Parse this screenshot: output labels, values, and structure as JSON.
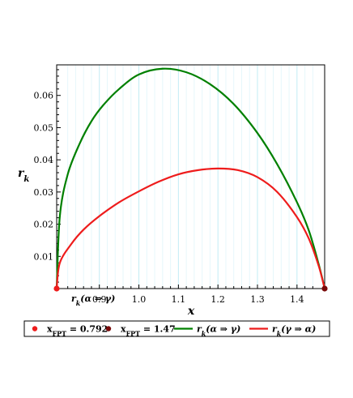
{
  "chart_data": {
    "type": "line",
    "title": "",
    "xlabel": "x",
    "ylabel": "r_k",
    "inline_label": "r_k(α ⇒ γ)",
    "xlim": [
      0.8,
      1.45
    ],
    "ylim": [
      0,
      0.0695
    ],
    "xticks": [
      0.9,
      1.0,
      1.1,
      1.2,
      1.3,
      1.4
    ],
    "xtick_labels": [
      "0.9",
      "1.0",
      "1.1",
      "1.2",
      "1.3",
      "1.4"
    ],
    "yticks": [
      0.01,
      0.02,
      0.03,
      0.04,
      0.05,
      0.06
    ],
    "ytick_labels": [
      "0.01",
      "0.02",
      "0.03",
      "0.04",
      "0.05",
      "0.06"
    ],
    "grid": true,
    "legend_position": "bottom",
    "series": [
      {
        "name": "r_k(α ⇒ γ)",
        "kind": "line",
        "color": "#008000",
        "x": [
          0.792,
          0.8,
          0.82,
          0.85,
          0.88,
          0.91,
          0.95,
          1.0,
          1.06,
          1.12,
          1.18,
          1.24,
          1.3,
          1.35,
          1.4,
          1.43,
          1.455,
          1.47
        ],
        "y": [
          0.0,
          0.0225,
          0.0355,
          0.045,
          0.052,
          0.057,
          0.062,
          0.0665,
          0.0683,
          0.0672,
          0.0635,
          0.0573,
          0.0483,
          0.0386,
          0.0268,
          0.018,
          0.0075,
          0.0
        ]
      },
      {
        "name": "r_k(γ ⇒ α)",
        "kind": "line",
        "color": "#ee1c1c",
        "x": [
          0.792,
          0.8,
          0.83,
          0.86,
          0.9,
          0.95,
          1.0,
          1.05,
          1.1,
          1.15,
          1.2,
          1.25,
          1.3,
          1.35,
          1.4,
          1.43,
          1.455,
          1.47
        ],
        "y": [
          0.0,
          0.008,
          0.014,
          0.0183,
          0.0225,
          0.0268,
          0.0302,
          0.0332,
          0.0355,
          0.0368,
          0.0373,
          0.0368,
          0.0346,
          0.03,
          0.0222,
          0.0155,
          0.007,
          0.0
        ]
      },
      {
        "name": "x_FPT = 0.792",
        "kind": "point",
        "color": "#ee1c1c",
        "x": [
          0.792
        ],
        "y": [
          0.0
        ]
      },
      {
        "name": "x_FPT = 1.47",
        "kind": "point",
        "color": "#7a0a0a",
        "x": [
          1.47
        ],
        "y": [
          0.0
        ]
      }
    ]
  },
  "legend": {
    "items": [
      {
        "marker": "dot",
        "color": "#ee1c1c",
        "main": "x",
        "sub": "FPT",
        "rest": " = 0.792"
      },
      {
        "marker": "dot",
        "color": "#7a0a0a",
        "main": "x",
        "sub": "FPT",
        "rest": " = 1.47"
      },
      {
        "marker": "line",
        "color": "#008000",
        "main": "r",
        "sub": "k",
        "rest": "(α ⇒ γ)"
      },
      {
        "marker": "line",
        "color": "#ee1c1c",
        "main": "r",
        "sub": "k",
        "rest": "(γ ⇒ α)"
      }
    ]
  }
}
